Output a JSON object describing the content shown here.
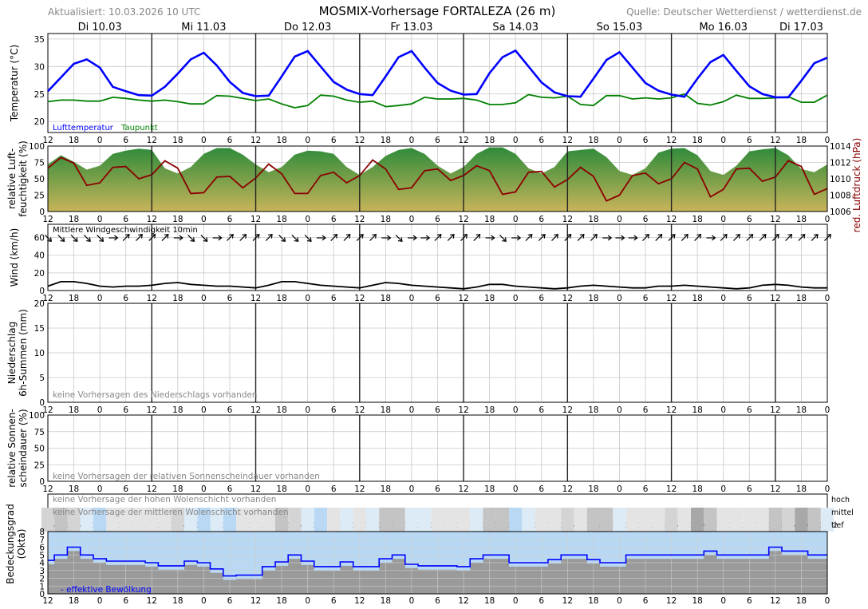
{
  "header": {
    "title": "MOSMIX-Vorhersage FORTALEZA (26 m)",
    "updated": "Aktualisiert: 10.03.2026 10 UTC",
    "source": "Quelle: Deutscher Wetterdienst / wetterdienst.de"
  },
  "days": [
    "Di 10.03",
    "Mi 11.03",
    "Do 12.03",
    "Fr 13.03",
    "Sa 14.03",
    "So 15.03",
    "Mo 16.03",
    "Di 17.03"
  ],
  "hour_labels": [
    "12",
    "18",
    "0",
    "6",
    "12",
    "18",
    "0",
    "6",
    "12",
    "18",
    "0",
    "6",
    "12",
    "18",
    "0",
    "6",
    "12",
    "18",
    "0",
    "6",
    "12",
    "18",
    "0",
    "6",
    "12",
    "18",
    "0",
    "6",
    "12",
    "18",
    "0"
  ],
  "colors": {
    "temperature": "#0000ff",
    "dewpoint": "#008000",
    "humidity_top": "#2e8b3a",
    "humidity_bottom": "#c8b45a",
    "pressure": "#8b0000",
    "wind": "#000000",
    "cloud_effective": "#0000ff",
    "cloud_sky": "#b8d8f4",
    "cloud_gray": "#9a9a9a"
  },
  "chart_data": [
    {
      "type": "line",
      "name": "temperature",
      "ylabel": "Temperatur (°C)",
      "ylim": [
        18,
        36
      ],
      "yticks": [
        20,
        25,
        30,
        35
      ],
      "grid": true,
      "legend": [
        "Lufttemperatur",
        "Taupunkt"
      ],
      "x_hours": [
        0,
        1,
        2,
        3,
        4,
        5,
        6,
        7,
        8,
        9,
        10,
        11,
        12,
        13,
        14,
        15,
        16,
        17,
        18,
        19,
        20,
        21,
        22,
        23,
        24,
        25,
        26,
        27,
        28,
        29,
        30,
        31,
        32,
        33,
        34,
        35,
        36,
        37,
        38,
        39,
        40,
        41,
        42,
        43,
        44,
        45,
        46,
        47,
        48,
        49,
        50,
        51,
        52,
        53,
        54,
        55,
        56,
        57,
        58,
        59,
        60
      ],
      "series": [
        {
          "name": "Lufttemperatur",
          "values": [
            25.5,
            28,
            30.5,
            31.3,
            29.8,
            26.3,
            25.5,
            24.8,
            24.7,
            26.3,
            28.7,
            31.3,
            32.5,
            30.2,
            27.2,
            25.2,
            24.6,
            24.7,
            28.2,
            31.8,
            32.8,
            30,
            27.2,
            25.8,
            25,
            24.8,
            28.2,
            31.7,
            32.8,
            29.8,
            27,
            25.6,
            24.9,
            25,
            28.8,
            31.7,
            32.9,
            30,
            27.1,
            25.3,
            24.6,
            24.5,
            27.8,
            31.2,
            32.6,
            29.8,
            27,
            25.6,
            24.9,
            24.5,
            27.8,
            30.8,
            32.1,
            29.2,
            26.4,
            25,
            24.4,
            24.4,
            27.4,
            30.6,
            31.6
          ]
        },
        {
          "name": "Taupunkt",
          "values": [
            23.6,
            23.9,
            23.9,
            23.7,
            23.7,
            24.4,
            24.2,
            23.9,
            23.7,
            23.9,
            23.6,
            23.2,
            23.2,
            24.7,
            24.6,
            24.2,
            23.8,
            24.1,
            23.2,
            22.5,
            22.9,
            24.8,
            24.6,
            23.9,
            23.5,
            23.7,
            22.7,
            22.9,
            23.2,
            24.4,
            24.1,
            24.1,
            24.2,
            23.9,
            23.1,
            23.1,
            23.4,
            24.9,
            24.4,
            24.3,
            24.6,
            23.1,
            22.9,
            24.7,
            24.7,
            24.1,
            24.3,
            24.1,
            24.3,
            25.0,
            23.3,
            23.0,
            23.6,
            24.8,
            24.2,
            24.2,
            24.3,
            24.5,
            23.5,
            23.5,
            24.8
          ]
        }
      ]
    },
    {
      "type": "area",
      "name": "humidity_pressure",
      "ylabel": "relative Luft-\nfeuchtigkeit (%)",
      "ylim": [
        0,
        100
      ],
      "yticks": [
        0,
        25,
        50,
        75,
        100
      ],
      "y2label": "red. Luftdruck (hPa)",
      "y2lim": [
        1006,
        1014
      ],
      "y2ticks": [
        1006,
        1008,
        1010,
        1012,
        1014
      ],
      "grid": true,
      "x_hours": [
        0,
        1,
        2,
        3,
        4,
        5,
        6,
        7,
        8,
        9,
        10,
        11,
        12,
        13,
        14,
        15,
        16,
        17,
        18,
        19,
        20,
        21,
        22,
        23,
        24,
        25,
        26,
        27,
        28,
        29,
        30,
        31,
        32,
        33,
        34,
        35,
        36,
        37,
        38,
        39,
        40,
        41,
        42,
        43,
        44,
        45,
        46,
        47,
        48,
        49,
        50,
        51,
        52,
        53,
        54,
        55,
        56,
        57,
        58,
        59,
        60
      ],
      "series": [
        {
          "name": "relative Luftfeuchtigkeit",
          "values": [
            72,
            86,
            76,
            64,
            70,
            88,
            93,
            96,
            94,
            66,
            58,
            68,
            88,
            97,
            97,
            87,
            72,
            60,
            68,
            87,
            93,
            92,
            88,
            68,
            56,
            68,
            85,
            94,
            97,
            88,
            70,
            58,
            68,
            88,
            98,
            98,
            88,
            66,
            58,
            68,
            92,
            94,
            96,
            83,
            62,
            56,
            66,
            90,
            96,
            97,
            86,
            62,
            56,
            70,
            92,
            95,
            97,
            86,
            65,
            60,
            72
          ]
        },
        {
          "name": "red. Luftdruck",
          "values": [
            1011.3,
            1012.6,
            1011.9,
            1009.2,
            1009.5,
            1011.4,
            1011.5,
            1010,
            1010.5,
            1012.2,
            1011.3,
            1008.2,
            1008.3,
            1010.2,
            1010.3,
            1008.9,
            1010.1,
            1011.8,
            1010.6,
            1008.2,
            1008.2,
            1010.4,
            1010.8,
            1009.5,
            1010.4,
            1012.3,
            1011.2,
            1008.7,
            1008.9,
            1011,
            1011.2,
            1009.8,
            1010.4,
            1011.6,
            1011,
            1008.1,
            1008.4,
            1010.8,
            1010.9,
            1009,
            1009.9,
            1011.4,
            1010.3,
            1007.3,
            1008,
            1010.4,
            1010.7,
            1009.4,
            1010,
            1012,
            1011.2,
            1007.8,
            1008.7,
            1011.2,
            1011.3,
            1009.7,
            1010.2,
            1012.2,
            1011.5,
            1008.1,
            1008.8
          ]
        }
      ]
    },
    {
      "type": "line",
      "name": "wind",
      "ylabel": "Wind (km/h)",
      "ylim": [
        0,
        75
      ],
      "yticks": [
        0,
        20,
        40,
        60
      ],
      "grid": true,
      "annotation": "Mittlere Windgeschwindigkeit 10min",
      "x_hours": [
        0,
        1,
        2,
        3,
        4,
        5,
        6,
        7,
        8,
        9,
        10,
        11,
        12,
        13,
        14,
        15,
        16,
        17,
        18,
        19,
        20,
        21,
        22,
        23,
        24,
        25,
        26,
        27,
        28,
        29,
        30,
        31,
        32,
        33,
        34,
        35,
        36,
        37,
        38,
        39,
        40,
        41,
        42,
        43,
        44,
        45,
        46,
        47,
        48,
        49,
        50,
        51,
        52,
        53,
        54,
        55,
        56,
        57,
        58,
        59,
        60
      ],
      "series": [
        {
          "name": "Mittlere Windgeschwindigkeit",
          "values": [
            5,
            10,
            10,
            8,
            5,
            4,
            5,
            5,
            6,
            8,
            9,
            7,
            6,
            5,
            5,
            4,
            3,
            6,
            10,
            10,
            8,
            6,
            5,
            4,
            3,
            6,
            9,
            8,
            6,
            5,
            4,
            3,
            2,
            4,
            7,
            7,
            5,
            4,
            3,
            2,
            3,
            5,
            6,
            5,
            4,
            3,
            3,
            5,
            5,
            6,
            5,
            4,
            3,
            2,
            3,
            6,
            7,
            6,
            4,
            3,
            3
          ]
        }
      ],
      "wind_direction_deg": [
        135,
        135,
        135,
        135,
        135,
        90,
        45,
        45,
        45,
        45,
        90,
        135,
        135,
        90,
        45,
        45,
        45,
        45,
        135,
        135,
        135,
        90,
        45,
        45,
        45,
        45,
        90,
        135,
        90,
        90,
        45,
        45,
        45,
        45,
        90,
        135,
        90,
        45,
        45,
        45,
        45,
        45,
        45,
        90,
        90,
        90,
        45,
        45,
        45,
        45,
        45,
        90,
        45,
        45,
        45,
        45,
        45,
        45,
        45,
        45,
        45
      ]
    },
    {
      "type": "bar",
      "name": "precipitation",
      "ylabel": "Niederschlag\n6h-Summen (mm)",
      "ylim": [
        0,
        20
      ],
      "yticks": [
        0,
        5,
        10,
        15,
        20
      ],
      "grid": true,
      "annotation": "keine Vorhersagen des Niederschlags vorhanden",
      "values": []
    },
    {
      "type": "bar",
      "name": "sunshine",
      "ylabel": "relative Sonnen-\nscheindauer (%)",
      "ylim": [
        0,
        100
      ],
      "yticks": [
        0,
        25,
        50,
        75,
        100
      ],
      "grid": true,
      "annotation": "keine Vorhersagen der relativen Sonnenscheindauer vorhanden",
      "values": []
    },
    {
      "type": "area",
      "name": "cloud_cover",
      "ylabel": "Bedeckungsgrad\n(Okta)",
      "ylim": [
        0,
        8
      ],
      "yticks": [
        0,
        1,
        2,
        3,
        4,
        5,
        6,
        7,
        8
      ],
      "grid": true,
      "layer_labels": [
        "hoch",
        "mittel",
        "tief"
      ],
      "annotations": [
        "keine Vorhersage der hohen Wolenschicht vorhanden",
        "keine Vorhersage der mittleren Wolenschicht vorhanden"
      ],
      "legend": [
        "- effektive Bewölkung"
      ],
      "low_cloud_okta": [
        4,
        5,
        4,
        2,
        1,
        3,
        3,
        3,
        3,
        3,
        4,
        2,
        1,
        2,
        1,
        3,
        3,
        3,
        5,
        4,
        2,
        1,
        3,
        2,
        3,
        2,
        5,
        5,
        2,
        2,
        3,
        3,
        3,
        2,
        5,
        5,
        1,
        2,
        3,
        3,
        4,
        3,
        5,
        5,
        2,
        3,
        3,
        3,
        4,
        3,
        6,
        5,
        3,
        3,
        3,
        3,
        5,
        4,
        6,
        5,
        2
      ],
      "series": [
        {
          "name": "effektive Bewölkung",
          "values": [
            4.3,
            5.0,
            6.0,
            5.0,
            4.5,
            4.2,
            4.2,
            4.2,
            4.0,
            3.6,
            3.6,
            4.2,
            4.0,
            3.2,
            2.3,
            2.4,
            2.4,
            3.5,
            4.1,
            5.0,
            4.2,
            3.5,
            3.5,
            4.1,
            3.5,
            3.5,
            4.5,
            5.0,
            3.8,
            3.6,
            3.6,
            3.6,
            3.5,
            4.5,
            5.0,
            5.0,
            4.0,
            4.0,
            4.0,
            4.4,
            5.0,
            5.0,
            4.4,
            4.0,
            4.0,
            5.0,
            5.0,
            5.0,
            5.0,
            5.0,
            5.0,
            5.5,
            5.0,
            5.0,
            5.0,
            5.0,
            6.0,
            5.5,
            5.5,
            5.0,
            5.0
          ]
        }
      ]
    }
  ]
}
